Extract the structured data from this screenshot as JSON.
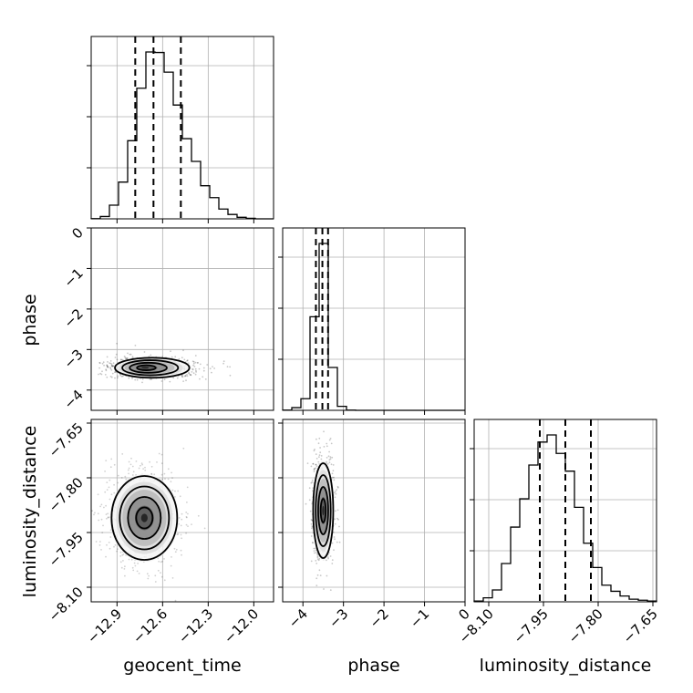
{
  "chart_data": {
    "type": "corner",
    "parameters": [
      "geocent_time",
      "phase",
      "luminosity_distance"
    ],
    "ranges": {
      "geocent_time": [
        -13.07,
        -11.87
      ],
      "phase": [
        -4.5,
        0.0
      ],
      "luminosity_distance": [
        -8.14,
        -7.64
      ]
    },
    "ticks": {
      "geocent_time": [
        -12.9,
        -12.6,
        -12.3,
        -12.0
      ],
      "phase": [
        -4,
        -3,
        -2,
        -1,
        0
      ],
      "luminosity_distance": [
        -8.1,
        -7.95,
        -7.8,
        -7.65
      ]
    },
    "tick_labels": {
      "geocent_time": [
        "−12.9",
        "−12.6",
        "−12.3",
        "−12.0"
      ],
      "phase": [
        "−4",
        "−3",
        "−2",
        "−1",
        "0"
      ],
      "luminosity_distance": [
        "−8.10",
        "−7.95",
        "−7.80",
        "−7.65"
      ]
    },
    "quantiles": {
      "geocent_time": [
        -12.78,
        -12.66,
        -12.48
      ],
      "phase": [
        -3.68,
        -3.52,
        -3.38
      ],
      "luminosity_distance": [
        -7.96,
        -7.89,
        -7.82
      ]
    },
    "histograms": {
      "geocent_time": {
        "bins_left": [
          -13.07,
          -13.01,
          -12.95,
          -12.89,
          -12.83,
          -12.77,
          -12.71,
          -12.65,
          -12.59,
          -12.53,
          -12.47,
          -12.41,
          -12.35,
          -12.29,
          -12.23,
          -12.17,
          -12.11,
          -12.05,
          -11.99,
          -11.93
        ],
        "bin_width": 0.06,
        "counts": [
          1,
          9,
          53,
          142,
          302,
          505,
          645,
          643,
          567,
          440,
          310,
          222,
          128,
          82,
          38,
          17,
          6,
          2,
          0,
          0
        ]
      },
      "phase": {
        "bins_left": [
          -4.5,
          -4.275,
          -4.05,
          -3.825,
          -3.6,
          -3.375,
          -3.15,
          -2.925,
          -2.7,
          -2.475,
          -2.25,
          -2.025,
          -1.8,
          -1.575,
          -1.35,
          -1.125,
          -0.9,
          -0.675,
          -0.45,
          -0.225
        ],
        "bin_width": 0.225,
        "counts": [
          1,
          12,
          52,
          419,
          747,
          192,
          18,
          1,
          0,
          0,
          0,
          0,
          0,
          0,
          0,
          0,
          0,
          0,
          0,
          0
        ]
      },
      "luminosity_distance": {
        "bins_left": [
          -8.14,
          -8.115,
          -8.09,
          -8.065,
          -8.04,
          -8.015,
          -7.99,
          -7.965,
          -7.94,
          -7.915,
          -7.89,
          -7.865,
          -7.84,
          -7.815,
          -7.79,
          -7.765,
          -7.74,
          -7.715,
          -7.69,
          -7.665
        ],
        "bin_width": 0.025,
        "counts": [
          3,
          15,
          45,
          145,
          283,
          390,
          518,
          605,
          632,
          562,
          495,
          358,
          222,
          130,
          63,
          40,
          22,
          10,
          6,
          3
        ]
      }
    },
    "joint_modes": {
      "geocent_time|phase": {
        "x": -12.72,
        "y": -3.45
      },
      "geocent_time|luminosity_distance": {
        "x": -12.72,
        "y": -7.91
      },
      "phase|luminosity_distance": {
        "x": -3.5,
        "y": -7.89
      }
    },
    "levels": [
      "0.118",
      "0.393",
      "0.675",
      "0.864"
    ]
  }
}
